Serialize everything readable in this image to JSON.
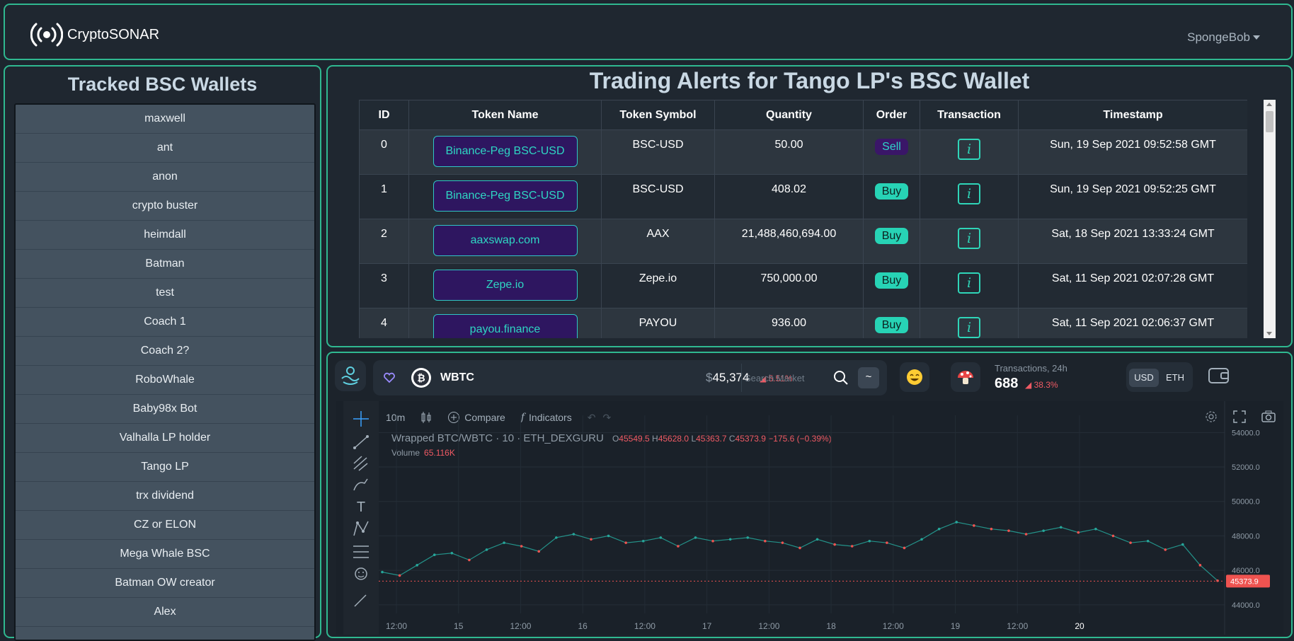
{
  "app": {
    "brand": "CryptoSONAR",
    "user": "SpongeBob"
  },
  "sidebar": {
    "title": "Tracked BSC Wallets",
    "wallets": [
      "maxwell",
      "ant",
      "anon",
      "crypto buster",
      "heimdall",
      "Batman",
      "test",
      "Coach 1",
      "Coach 2?",
      "RoboWhale",
      "Baby98x Bot",
      "Valhalla LP holder",
      "Tango LP",
      "trx dividend",
      "CZ or ELON",
      "Mega Whale BSC",
      "Batman OW creator",
      "Alex"
    ]
  },
  "alerts": {
    "title": "Trading Alerts for Tango LP's BSC Wallet",
    "columns": [
      "ID",
      "Token Name",
      "Token Symbol",
      "Quantity",
      "Order",
      "Transaction",
      "Timestamp"
    ],
    "rows": [
      {
        "id": "0",
        "name": "Binance-Peg BSC-USD",
        "symbol": "BSC-USD",
        "quantity": "50.00",
        "order": "Sell",
        "tx": "i",
        "timestamp": "Sun, 19 Sep 2021 09:52:58 GMT"
      },
      {
        "id": "1",
        "name": "Binance-Peg BSC-USD",
        "symbol": "BSC-USD",
        "quantity": "408.02",
        "order": "Buy",
        "tx": "i",
        "timestamp": "Sun, 19 Sep 2021 09:52:25 GMT"
      },
      {
        "id": "2",
        "name": "aaxswap.com",
        "symbol": "AAX",
        "quantity": "21,488,460,694.00",
        "order": "Buy",
        "tx": "i",
        "timestamp": "Sat, 18 Sep 2021 13:33:24 GMT"
      },
      {
        "id": "3",
        "name": "Zepe.io",
        "symbol": "Zepe.io",
        "quantity": "750,000.00",
        "order": "Buy",
        "tx": "i",
        "timestamp": "Sat, 11 Sep 2021 02:07:28 GMT"
      },
      {
        "id": "4",
        "name": "payou.finance",
        "symbol": "PAYOU",
        "quantity": "936.00",
        "order": "Buy",
        "tx": "i",
        "timestamp": "Sat, 11 Sep 2021 02:06:37 GMT"
      }
    ]
  },
  "market": {
    "token": "WBTC",
    "price_symbol": "$",
    "price": "45,374",
    "change": "5.51%",
    "search_placeholder": "Search Market",
    "tilde": "~",
    "tx_label": "Transactions, 24h",
    "tx_count": "688",
    "tx_change": "38.3%",
    "currencies": [
      "USD",
      "ETH"
    ],
    "colors": {
      "accent": "#2fb890",
      "down": "#f05a64",
      "up": "#26a69a"
    }
  },
  "chart_toolbar": {
    "interval": "10m",
    "compare": "Compare",
    "indicators": "Indicators"
  },
  "chart_data": {
    "type": "line",
    "title": "Wrapped BTC/WBTC · 10 · ETH_DEXGURU",
    "ohlc": {
      "o_label": "O",
      "o": "45549.5",
      "h_label": "H",
      "h": "45628.0",
      "l_label": "L",
      "l": "45363.7",
      "c_label": "C",
      "c": "45373.9",
      "change": "−175.6 (−0.39%)"
    },
    "volume_label": "Volume",
    "volume": "65.116K",
    "current_price_label": "45373.9",
    "x_ticks": [
      "12:00",
      "15",
      "12:00",
      "16",
      "12:00",
      "17",
      "12:00",
      "18",
      "12:00",
      "19",
      "12:00",
      "20"
    ],
    "y_ticks": [
      "54000.0",
      "52000.0",
      "50000.0",
      "48000.0",
      "46000.0",
      "44000.0"
    ],
    "ylim": [
      43500,
      55000
    ],
    "series": [
      {
        "values": [
          45900,
          45700,
          46300,
          46900,
          47000,
          46600,
          47200,
          47600,
          47400,
          47100,
          47900,
          48100,
          47800,
          48000,
          47600,
          47700,
          47900,
          47400,
          47900,
          47700,
          47800,
          47900,
          47700,
          47600,
          47300,
          47800,
          47500,
          47400,
          47700,
          47600,
          47300,
          47800,
          48400,
          48800,
          48600,
          48400,
          48300,
          48100,
          48300,
          48500,
          48200,
          48400,
          48000,
          47600,
          47700,
          47200,
          47500,
          46300,
          45400
        ]
      }
    ]
  }
}
